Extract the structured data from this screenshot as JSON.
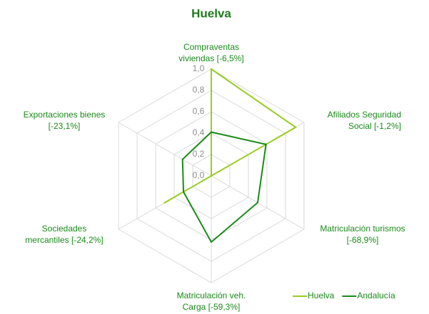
{
  "chart_data": {
    "type": "radar",
    "title": "Huelva",
    "categories": [
      [
        "Compraventas",
        "viviendas [-6,5%]"
      ],
      [
        "Afiliados Seguridad",
        "Social [-1,2%]"
      ],
      [
        "Matriculación turismos",
        "[-68,9%]"
      ],
      [
        "Matriculación veh.",
        "Carga [-59,3%]"
      ],
      [
        "Sociedades",
        "mercantiles [-24,2%]"
      ],
      [
        "Exportaciones bienes",
        "[-23,1%]"
      ]
    ],
    "series": [
      {
        "name": "Huelva",
        "color": "#99cc22",
        "values": [
          1.0,
          0.91,
          0.0,
          0.0,
          0.51,
          0.0
        ]
      },
      {
        "name": "Andalucía",
        "color": "#1a8a1a",
        "values": [
          0.41,
          0.59,
          0.5,
          0.62,
          0.3,
          0.31
        ]
      }
    ],
    "ylim": [
      0,
      1
    ],
    "yticks": [
      {
        "value": 0,
        "label": "0,0"
      },
      {
        "value": 0.2,
        "label": "0,2"
      },
      {
        "value": 0.4,
        "label": "0,4"
      },
      {
        "value": 0.6,
        "label": "0,6"
      },
      {
        "value": 0.8,
        "label": "0,8"
      },
      {
        "value": 1,
        "label": "1,0"
      }
    ],
    "grid": true,
    "legend": "bottom-right"
  }
}
